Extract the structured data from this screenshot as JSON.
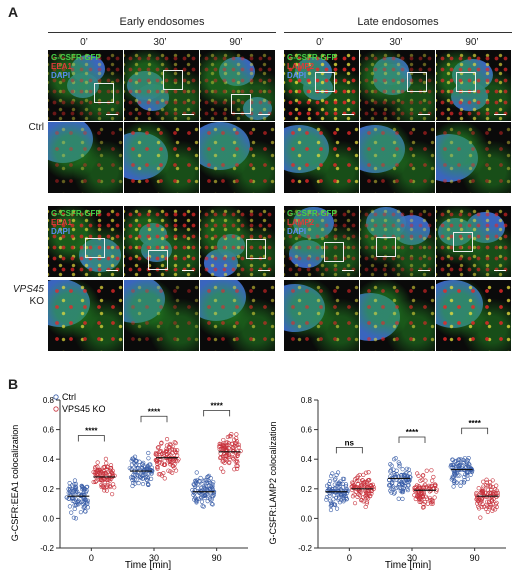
{
  "panel_a": {
    "label": "A",
    "groups": [
      "Early endosomes",
      "Late endosomes"
    ],
    "timepoints": [
      "0’",
      "30’",
      "90’",
      "0’",
      "30’",
      "90’"
    ],
    "rows": {
      "ctrl": "Ctrl",
      "ko_gene": "VPS45",
      "ko_suffix": " KO"
    },
    "early_channels": [
      "G-CSFR-GFP",
      "EEA1",
      "DAPI"
    ],
    "late_channels": [
      "G-CSFR-GFP",
      "LAMP2",
      "DAPI"
    ],
    "channel_colors": {
      "gfp": "#48d048",
      "red": "#e23a3a",
      "dapi": "#5b8cf0"
    }
  },
  "panel_b": {
    "label": "B"
  },
  "chart_data": [
    {
      "type": "scatter",
      "ylabel": "G-CSFR:EEA1 colocalization",
      "xlabel": "Time [min]",
      "categories": [
        "0",
        "30",
        "90"
      ],
      "ylim": [
        -0.2,
        0.8
      ],
      "yticks": [
        "-0.2",
        "0.0",
        "0.2",
        "0.4",
        "0.6",
        "0.8"
      ],
      "legend": {
        "position": "top-left",
        "entries": [
          "Ctrl",
          "VPS45 KO"
        ]
      },
      "series": [
        {
          "name": "Ctrl",
          "color": "#3a5ea8",
          "values": [
            0.15,
            0.32,
            0.18
          ]
        },
        {
          "name": "VPS45 KO",
          "color": "#c8323c",
          "values": [
            0.28,
            0.41,
            0.45
          ]
        }
      ],
      "annotations": [
        "****",
        "****",
        "****"
      ]
    },
    {
      "type": "scatter",
      "ylabel": "G-CSFR:LAMP2 colocalization",
      "xlabel": "Time [min]",
      "categories": [
        "0",
        "30",
        "90"
      ],
      "ylim": [
        -0.2,
        0.8
      ],
      "yticks": [
        "-0.2",
        "0.0",
        "0.2",
        "0.4",
        "0.6",
        "0.8"
      ],
      "series": [
        {
          "name": "Ctrl",
          "color": "#3a5ea8",
          "values": [
            0.18,
            0.27,
            0.33
          ]
        },
        {
          "name": "VPS45 KO",
          "color": "#c8323c",
          "values": [
            0.2,
            0.19,
            0.15
          ]
        }
      ],
      "annotations": [
        "ns",
        "****",
        "****"
      ]
    }
  ]
}
